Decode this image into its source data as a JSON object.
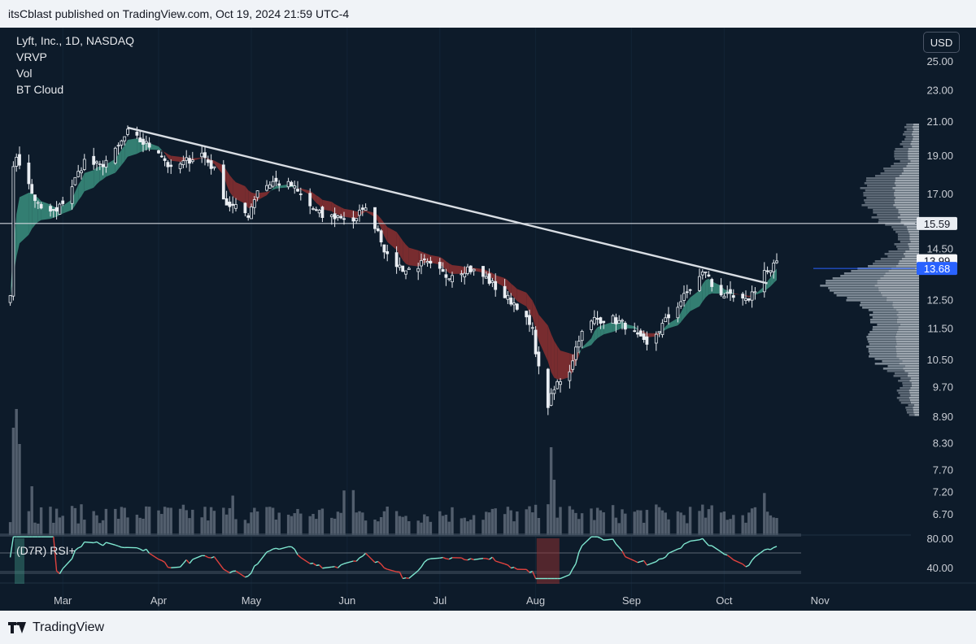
{
  "header": {
    "published": "itsCblast published on TradingView.com, Oct 19, 2024 21:59 UTC-4"
  },
  "legend": {
    "symbol": "Lyft, Inc., 1D, NASDAQ",
    "indicators": [
      "VRVP",
      "Vol",
      "BT Cloud"
    ]
  },
  "currency_button": "USD",
  "footer": {
    "brand": "TradingView"
  },
  "colors": {
    "background": "#0d1b2a",
    "bull_cloud": "#3b8f7f",
    "bear_cloud": "#8c2f30",
    "candle": "#e9edf2",
    "trendline": "#d8dde3",
    "current_price_tag": "#2962ff",
    "rsi_line_up": "#7fe7d0",
    "rsi_line_down": "#e0423e"
  },
  "chart_data": {
    "type": "candlestick",
    "symbol": "Lyft, Inc., 1D, NASDAQ",
    "x_tick_labels": [
      "Mar",
      "Apr",
      "May",
      "Jun",
      "Jul",
      "Aug",
      "Sep",
      "Oct",
      "Nov"
    ],
    "y_tick_labels": [
      "25.00",
      "23.00",
      "21.00",
      "19.00",
      "17.00",
      "14.50",
      "12.50",
      "11.50",
      "10.50",
      "9.70",
      "8.90",
      "8.30",
      "7.70",
      "7.20",
      "6.70"
    ],
    "y_scale": "log",
    "price_levels": {
      "horizontal_line": "15.59",
      "last_close": "13.99",
      "tagged": "13.68"
    },
    "trendline": {
      "from": {
        "x": "2024-03-22",
        "y": 20.6
      },
      "to": {
        "x": "2024-10-15",
        "y": 13.1
      }
    },
    "price_series": [
      {
        "x": "2024-02-13",
        "y": 12.8
      },
      {
        "x": "2024-02-14",
        "y": 18.2
      },
      {
        "x": "2024-02-15",
        "y": 19.0
      },
      {
        "x": "2024-02-20",
        "y": 17.0
      },
      {
        "x": "2024-02-23",
        "y": 16.2
      },
      {
        "x": "2024-02-28",
        "y": 16.1
      },
      {
        "x": "2024-03-04",
        "y": 17.4
      },
      {
        "x": "2024-03-08",
        "y": 18.7
      },
      {
        "x": "2024-03-13",
        "y": 18.4
      },
      {
        "x": "2024-03-18",
        "y": 19.2
      },
      {
        "x": "2024-03-22",
        "y": 20.3
      },
      {
        "x": "2024-03-27",
        "y": 19.7
      },
      {
        "x": "2024-04-01",
        "y": 19.3
      },
      {
        "x": "2024-04-05",
        "y": 18.2
      },
      {
        "x": "2024-04-10",
        "y": 18.7
      },
      {
        "x": "2024-04-15",
        "y": 19.1
      },
      {
        "x": "2024-04-19",
        "y": 18.2
      },
      {
        "x": "2024-04-23",
        "y": 16.5
      },
      {
        "x": "2024-04-26",
        "y": 16.3
      },
      {
        "x": "2024-04-30",
        "y": 16.0
      },
      {
        "x": "2024-05-03",
        "y": 17.2
      },
      {
        "x": "2024-05-08",
        "y": 17.6
      },
      {
        "x": "2024-05-14",
        "y": 17.4
      },
      {
        "x": "2024-05-20",
        "y": 16.4
      },
      {
        "x": "2024-05-24",
        "y": 15.9
      },
      {
        "x": "2024-05-30",
        "y": 15.9
      },
      {
        "x": "2024-06-04",
        "y": 15.7
      },
      {
        "x": "2024-06-06",
        "y": 16.4
      },
      {
        "x": "2024-06-11",
        "y": 15.3
      },
      {
        "x": "2024-06-14",
        "y": 14.1
      },
      {
        "x": "2024-06-20",
        "y": 13.6
      },
      {
        "x": "2024-06-26",
        "y": 13.9
      },
      {
        "x": "2024-07-03",
        "y": 13.4
      },
      {
        "x": "2024-07-10",
        "y": 13.7
      },
      {
        "x": "2024-07-16",
        "y": 13.3
      },
      {
        "x": "2024-07-22",
        "y": 12.6
      },
      {
        "x": "2024-07-26",
        "y": 12.3
      },
      {
        "x": "2024-07-31",
        "y": 11.4
      },
      {
        "x": "2024-08-02",
        "y": 10.2
      },
      {
        "x": "2024-08-05",
        "y": 9.2
      },
      {
        "x": "2024-08-08",
        "y": 9.8
      },
      {
        "x": "2024-08-12",
        "y": 10.2
      },
      {
        "x": "2024-08-15",
        "y": 11.2
      },
      {
        "x": "2024-08-20",
        "y": 11.8
      },
      {
        "x": "2024-08-26",
        "y": 11.8
      },
      {
        "x": "2024-08-30",
        "y": 11.6
      },
      {
        "x": "2024-09-04",
        "y": 11.1
      },
      {
        "x": "2024-09-06",
        "y": 10.9
      },
      {
        "x": "2024-09-11",
        "y": 11.6
      },
      {
        "x": "2024-09-16",
        "y": 12.3
      },
      {
        "x": "2024-09-20",
        "y": 12.9
      },
      {
        "x": "2024-09-25",
        "y": 13.6
      },
      {
        "x": "2024-09-27",
        "y": 13.0
      },
      {
        "x": "2024-10-02",
        "y": 12.6
      },
      {
        "x": "2024-10-08",
        "y": 12.4
      },
      {
        "x": "2024-10-11",
        "y": 12.9
      },
      {
        "x": "2024-10-14",
        "y": 13.6
      },
      {
        "x": "2024-10-16",
        "y": 13.5
      },
      {
        "x": "2024-10-18",
        "y": 13.99
      }
    ],
    "panels": [
      {
        "name": "Vol"
      },
      {
        "name": "(D7R) RSI+",
        "y_tick_labels": [
          "80.00",
          "40.00"
        ],
        "levels": [
          80,
          40
        ]
      }
    ],
    "overlays": [
      "VRVP",
      "BT Cloud"
    ]
  }
}
